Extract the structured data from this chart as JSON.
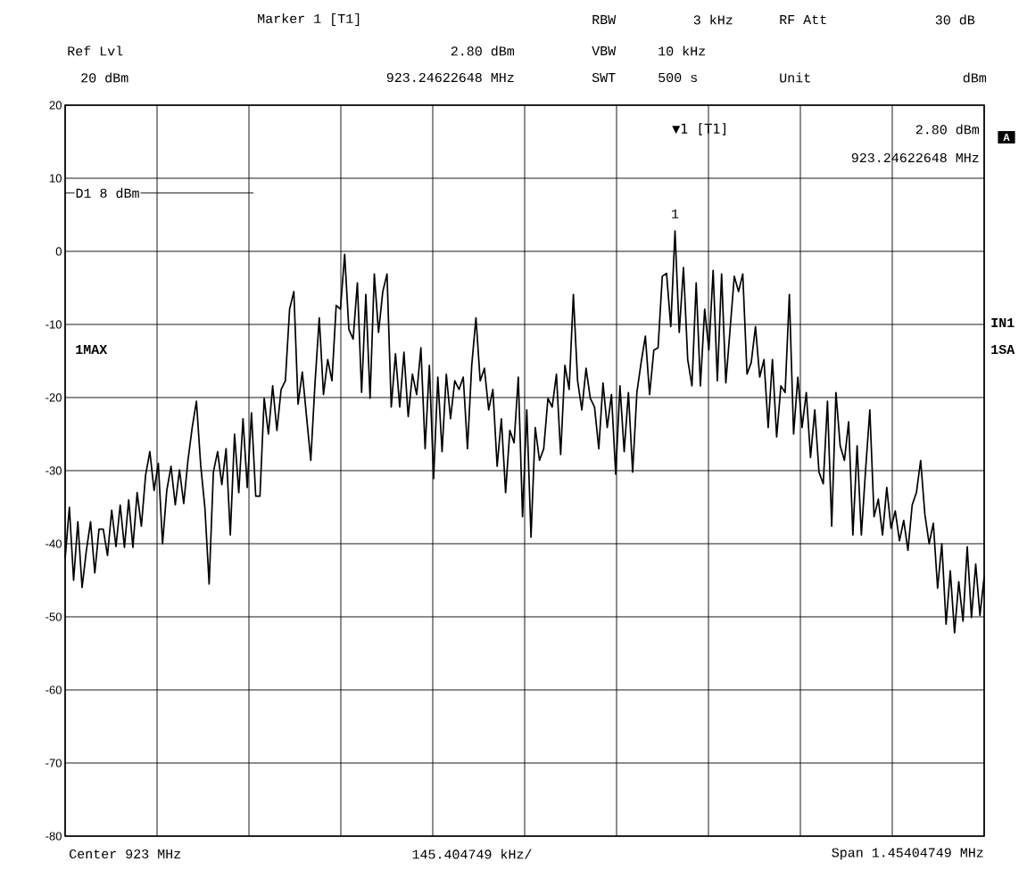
{
  "chart_data": {
    "type": "line",
    "categories": [
      null,
      null,
      null,
      null,
      null,
      null,
      null,
      null,
      null,
      null,
      null,
      null,
      null,
      null,
      null,
      null,
      null,
      null,
      null,
      null,
      null,
      null,
      null,
      null,
      null,
      null,
      null,
      null,
      null,
      null,
      null,
      null,
      null,
      null,
      null,
      null,
      null,
      null,
      null,
      null,
      null,
      null,
      null,
      null,
      null,
      null,
      null,
      null,
      null,
      null,
      null,
      null,
      null,
      null,
      null,
      null,
      null,
      null,
      null,
      null,
      null,
      null,
      null,
      null,
      null,
      null,
      null,
      null,
      null,
      null,
      null,
      null,
      null,
      null,
      null,
      null,
      null,
      null,
      null,
      null,
      null,
      null,
      null,
      null,
      null,
      null,
      null,
      null,
      null,
      null,
      null,
      null,
      null,
      null,
      null,
      null,
      null,
      null,
      null,
      null,
      null,
      null,
      null,
      null,
      null,
      null,
      null,
      null,
      null,
      null,
      null,
      null,
      null,
      null,
      null,
      null,
      null,
      null,
      null,
      null,
      null,
      null,
      null,
      null,
      null,
      null,
      null,
      null,
      null,
      null,
      null,
      null,
      null,
      null,
      null,
      null,
      null,
      null,
      null,
      null,
      null,
      null,
      null,
      null,
      null,
      null,
      null,
      null,
      null,
      null,
      null,
      null,
      null,
      null,
      null,
      null,
      null,
      null,
      null,
      null,
      null,
      null,
      null,
      null,
      null,
      null,
      null,
      null,
      null,
      null,
      null,
      null,
      null,
      null,
      null,
      null,
      null,
      null,
      null,
      null,
      null,
      null,
      null,
      null,
      null,
      null,
      null,
      null,
      null,
      null,
      null,
      null,
      null,
      null,
      null,
      null,
      null,
      null,
      null,
      null,
      null,
      null,
      null,
      null,
      null,
      null,
      null,
      null,
      null,
      null,
      null,
      null,
      null,
      null,
      null,
      null,
      null,
      null
    ],
    "values": [
      -42,
      -35,
      -45,
      -37,
      -46,
      -41,
      -37,
      -44,
      -38,
      -38,
      -41.6,
      -35.4,
      -40.4,
      -34.7,
      -40.5,
      -34,
      -40.5,
      -33,
      -37.6,
      -30.6,
      -27.4,
      -32.7,
      -29,
      -40,
      -32.7,
      -29.4,
      -34.7,
      -29.9,
      -34.5,
      -28.6,
      -24.1,
      -20.5,
      -29.2,
      -35.1,
      -45.5,
      -30.2,
      -27.4,
      -31.9,
      -27,
      -38.8,
      -25,
      -33,
      -22.9,
      -32.3,
      -22.1,
      -33.5,
      -33.5,
      -20.1,
      -25,
      -18.4,
      -24.5,
      -18.9,
      -17.7,
      -7.9,
      -5.5,
      -20.9,
      -16.5,
      -22.6,
      -28.6,
      -18,
      -9.1,
      -19.6,
      -14.8,
      -17.7,
      -7.4,
      -7.9,
      -0.4,
      -10.7,
      -12,
      -4.3,
      -19.3,
      -5.9,
      -20.1,
      -3.1,
      -11.1,
      -5.5,
      -3.1,
      -21.3,
      -14,
      -21.3,
      -13.8,
      -22.6,
      -16.8,
      -19.6,
      -13.2,
      -27,
      -15.6,
      -31.1,
      -17.2,
      -27.4,
      -16.8,
      -22.9,
      -17.7,
      -18.9,
      -17.2,
      -27,
      -15.6,
      -9.1,
      -17.7,
      -16,
      -21.7,
      -18.9,
      -29.4,
      -22.9,
      -33,
      -24.5,
      -26.2,
      -17.2,
      -36.3,
      -21.7,
      -39.1,
      -24.1,
      -28.6,
      -27,
      -20.1,
      -21.3,
      -16.8,
      -27.8,
      -15.6,
      -18.9,
      -5.9,
      -17.7,
      -21.7,
      -16,
      -20.1,
      -21.3,
      -27,
      -18,
      -24.1,
      -19.6,
      -30.5,
      -18.4,
      -27.4,
      -19.3,
      -30.2,
      -19.3,
      -15.2,
      -11.6,
      -19.6,
      -13.5,
      -13.2,
      -3.4,
      -3,
      -10.3,
      2.8,
      -11.1,
      -2.2,
      -14.8,
      -18.4,
      -4.3,
      -18.4,
      -7.9,
      -13.5,
      -2.6,
      -17.7,
      -3.1,
      -18,
      -10.7,
      -3.4,
      -5.5,
      -3.1,
      -16.8,
      -15.2,
      -10.3,
      -17.2,
      -14.8,
      -24.1,
      -14.8,
      -25.4,
      -18.4,
      -19.3,
      -5.9,
      -25,
      -17.2,
      -24.1,
      -19.3,
      -28.2,
      -21.7,
      -30.2,
      -31.8,
      -20.5,
      -37.6,
      -19.3,
      -26.6,
      -28.6,
      -23.3,
      -38.8,
      -26.6,
      -38.8,
      -29.9,
      -21.7,
      -36.3,
      -33.9,
      -38.8,
      -32.3,
      -37.9,
      -35.5,
      -39.6,
      -36.8,
      -40.9,
      -34.7,
      -33,
      -28.6,
      -36,
      -40,
      -37.2,
      -46.1,
      -40,
      -51,
      -43.7,
      -52.2,
      -45.2,
      -50.6,
      -40.4,
      -50.1,
      -42.8,
      -49.8,
      -44.5
    ],
    "color": "#000000",
    "marker": "none",
    "line_style": "solid",
    "ylim": [
      -80,
      20
    ],
    "yticks": [
      -80,
      -70,
      -60,
      -50,
      -40,
      -30,
      -20,
      -10,
      0,
      10,
      20
    ],
    "grid": true,
    "tick_labels": "y",
    "ref_lines": [
      {
        "axis": "y",
        "value": 8,
        "label": "D1 8 dBm"
      }
    ],
    "annotations": [
      "Marker 1 [T1]",
      "RBW",
      "3 kHz",
      "RF Att",
      "30 dB",
      "Ref Lvl",
      "2.80 dBm",
      "VBW",
      "10 kHz",
      "20 dBm",
      "923.24622648 MHz",
      "SWT",
      "500 s",
      "Unit",
      "dBm",
      "▼1 [T1]",
      "2.80 dBm",
      "923.24622648 MHz",
      "1MAX",
      "IN1",
      "1SA",
      "A",
      "Center 923 MHz",
      "145.404749 kHz/",
      "Span 1.45404749 MHz",
      {
        "text": "1",
        "y": 2.8
      }
    ]
  }
}
